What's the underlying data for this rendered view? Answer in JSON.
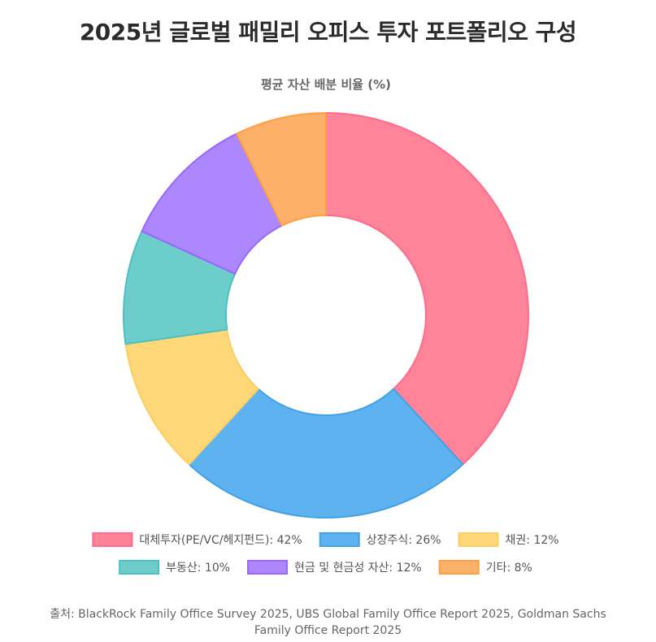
{
  "page": {
    "title": "2025년 글로벌 패밀리 오피스 투자 포트폴리오 구성",
    "source": "출처: BlackRock Family Office Survey 2025, UBS Global Family Office Report 2025, Goldman Sachs Family Office Report 2025"
  },
  "chart_data": {
    "type": "pie",
    "variant": "donut",
    "title": "평균 자산 배분 비율 (%)",
    "unit": "%",
    "legend_position": "bottom",
    "categories": [
      "대체투자(PE/VC/헤지펀드)",
      "상장주식",
      "채권",
      "부동산",
      "현금 및 현금성 자산",
      "기타"
    ],
    "values": [
      42,
      26,
      12,
      10,
      12,
      8
    ],
    "legend_labels": [
      "대체투자(PE/VC/헤지펀드): 42%",
      "상장주식: 26%",
      "채권: 12%",
      "부동산: 10%",
      "현금 및 현금성 자산: 12%",
      "기타: 8%"
    ],
    "colors": [
      "#ff8499",
      "#5db2ef",
      "#fdd778",
      "#6dcdcb",
      "#ad87fe",
      "#fdb06a"
    ],
    "border_colors": [
      "#ff6b8a",
      "#3fa2e6",
      "#fccf60",
      "#4cc0c0",
      "#9966ff",
      "#ff9f40"
    ]
  }
}
